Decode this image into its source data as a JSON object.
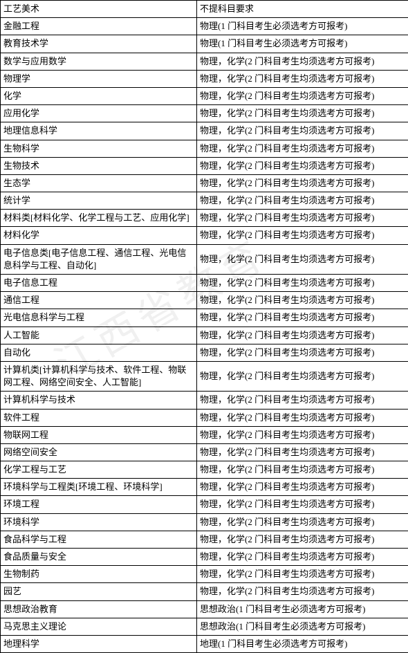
{
  "watermark_text": "江西省教育",
  "columns": [
    "major",
    "requirement"
  ],
  "cell_bg": "#ffffff",
  "border_color": "#000000",
  "font_size": 13,
  "rows": [
    {
      "major": "工艺美术",
      "requirement": "不提科目要求"
    },
    {
      "major": "金融工程",
      "requirement": "物理(1 门科目考生必须选考方可报考)"
    },
    {
      "major": "教育技术学",
      "requirement": "物理(1 门科目考生必须选考方可报考)"
    },
    {
      "major": "数学与应用数学",
      "requirement": "物理，化学(2 门科目考生均须选考方可报考)"
    },
    {
      "major": "物理学",
      "requirement": "物理，化学(2 门科目考生均须选考方可报考)"
    },
    {
      "major": "化学",
      "requirement": "物理，化学(2 门科目考生均须选考方可报考)"
    },
    {
      "major": "应用化学",
      "requirement": "物理，化学(2 门科目考生均须选考方可报考)"
    },
    {
      "major": "地理信息科学",
      "requirement": "物理，化学(2 门科目考生均须选考方可报考)"
    },
    {
      "major": "生物科学",
      "requirement": "物理，化学(2 门科目考生均须选考方可报考)"
    },
    {
      "major": "生物技术",
      "requirement": "物理，化学(2 门科目考生均须选考方可报考)"
    },
    {
      "major": "生态学",
      "requirement": "物理，化学(2 门科目考生均须选考方可报考)"
    },
    {
      "major": "统计学",
      "requirement": "物理，化学(2 门科目考生均须选考方可报考)"
    },
    {
      "major": "材料类[材料化学、化学工程与工艺、应用化学]",
      "requirement": "物理，化学(2 门科目考生均须选考方可报考)"
    },
    {
      "major": "材料化学",
      "requirement": "物理，化学(2 门科目考生均须选考方可报考)"
    },
    {
      "major": "电子信息类[电子信息工程、通信工程、光电信息科学与工程、自动化]",
      "requirement": "物理，化学(2 门科目考生均须选考方可报考)"
    },
    {
      "major": "电子信息工程",
      "requirement": "物理，化学(2 门科目考生均须选考方可报考)"
    },
    {
      "major": "通信工程",
      "requirement": "物理，化学(2 门科目考生均须选考方可报考)"
    },
    {
      "major": "光电信息科学与工程",
      "requirement": "物理，化学(2 门科目考生均须选考方可报考)"
    },
    {
      "major": "人工智能",
      "requirement": "物理，化学(2 门科目考生均须选考方可报考)"
    },
    {
      "major": "自动化",
      "requirement": "物理，化学(2 门科目考生均须选考方可报考)"
    },
    {
      "major": "计算机类[计算机科学与技术、软件工程、物联网工程、网络空间安全、人工智能]",
      "requirement": "物理，化学(2 门科目考生均须选考方可报考)"
    },
    {
      "major": "计算机科学与技术",
      "requirement": "物理，化学(2 门科目考生均须选考方可报考)"
    },
    {
      "major": "软件工程",
      "requirement": "物理，化学(2 门科目考生均须选考方可报考)"
    },
    {
      "major": "物联网工程",
      "requirement": "物理，化学(2 门科目考生均须选考方可报考)"
    },
    {
      "major": "网络空间安全",
      "requirement": "物理，化学(2 门科目考生均须选考方可报考)"
    },
    {
      "major": "化学工程与工艺",
      "requirement": "物理，化学(2 门科目考生均须选考方可报考)"
    },
    {
      "major": "环境科学与工程类[环境工程、环境科学]",
      "requirement": "物理，化学(2 门科目考生均须选考方可报考)"
    },
    {
      "major": "环境工程",
      "requirement": "物理，化学(2 门科目考生均须选考方可报考)"
    },
    {
      "major": "环境科学",
      "requirement": "物理，化学(2 门科目考生均须选考方可报考)"
    },
    {
      "major": "食品科学与工程",
      "requirement": "物理，化学(2 门科目考生均须选考方可报考)"
    },
    {
      "major": "食品质量与安全",
      "requirement": "物理，化学(2 门科目考生均须选考方可报考)"
    },
    {
      "major": "生物制药",
      "requirement": "物理，化学(2 门科目考生均须选考方可报考)"
    },
    {
      "major": "园艺",
      "requirement": "物理，化学(2 门科目考生均须选考方可报考)"
    },
    {
      "major": "思想政治教育",
      "requirement": "思想政治(1 门科目考生必须选考方可报考)"
    },
    {
      "major": "马克思主义理论",
      "requirement": "思想政治(1 门科目考生必须选考方可报考)"
    },
    {
      "major": "地理科学",
      "requirement": "地理(1 门科目考生必须选考方可报考)"
    }
  ]
}
